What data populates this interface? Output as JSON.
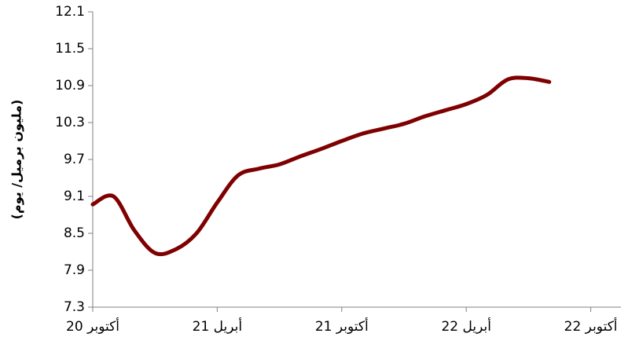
{
  "chart_data": {
    "type": "line",
    "y_label": "(مليون برميل/ يوم)",
    "categories": [
      "أكتوبر 20",
      null,
      null,
      null,
      null,
      null,
      "أبريل 21",
      null,
      null,
      null,
      null,
      null,
      "أكتوبر 21",
      null,
      null,
      null,
      null,
      null,
      "أبريل 22",
      null,
      null,
      null,
      null,
      null,
      "أكتوبر 22"
    ],
    "series": [
      {
        "name": null,
        "color": "#7f0000",
        "values": [
          8.97,
          9.1,
          8.55,
          8.18,
          8.24,
          8.5,
          9.0,
          9.44,
          9.55,
          9.62,
          9.75,
          9.87,
          10.0,
          10.12,
          10.2,
          10.28,
          10.4,
          10.5,
          10.6,
          10.75,
          11.0,
          11.02,
          10.96,
          null,
          null
        ]
      }
    ],
    "ylim": [
      7.3,
      12.1
    ],
    "yticks": [
      7.3,
      7.9,
      8.5,
      9.1,
      9.7,
      10.3,
      10.9,
      11.5,
      12.1
    ]
  }
}
